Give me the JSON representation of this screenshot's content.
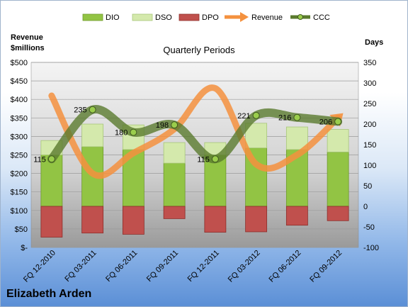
{
  "chart_data": {
    "type": "bar",
    "title": "Quarterly Periods",
    "company": "Elizabeth Arden",
    "y_left_label": [
      "Revenue",
      "$millions"
    ],
    "y_right_label": "Days",
    "y_left_ticks": [
      "$500",
      "$450",
      "$400",
      "$350",
      "$300",
      "$250",
      "$200",
      "$150",
      "$100",
      "$50",
      "$-"
    ],
    "y_left_lim": [
      0,
      500
    ],
    "y_right_ticks": [
      "350",
      "300",
      "250",
      "200",
      "150",
      "100",
      "50",
      "0",
      "-50",
      "-100"
    ],
    "y_right_lim": [
      -100,
      350
    ],
    "categories": [
      "FQ 12-2010",
      "FQ 03-2011",
      "FQ 06-2011",
      "FQ 09-2011",
      "FQ 12-2011",
      "FQ 03-2012",
      "FQ 06-2012",
      "FQ 09-2012"
    ],
    "series": [
      {
        "name": "DIO",
        "axis": "days",
        "values": [
          125,
          145,
          138,
          105,
          125,
          142,
          138,
          132
        ]
      },
      {
        "name": "DSO",
        "axis": "days",
        "values": [
          35,
          55,
          60,
          50,
          30,
          60,
          55,
          55
        ]
      },
      {
        "name": "DPO",
        "axis": "days",
        "values": [
          -75,
          -65,
          -68,
          -30,
          -63,
          -62,
          -46,
          -35
        ]
      },
      {
        "name": "Revenue",
        "axis": "revenue",
        "values": [
          410,
          200,
          255,
          320,
          430,
          225,
          250,
          350
        ]
      },
      {
        "name": "CCC",
        "axis": "days",
        "values": [
          115,
          235,
          180,
          198,
          115,
          221,
          216,
          206
        ]
      }
    ],
    "ccc_labels": [
      "115",
      "235",
      "180",
      "198",
      "115",
      "221",
      "216",
      "206"
    ],
    "legend_position": "top",
    "grid": true
  },
  "colors": {
    "dio": "#92c444",
    "dso": "#d4e9ac",
    "dpo": "#c0504d",
    "revenue": "#f4913e",
    "ccc": "#5a7a2e"
  }
}
